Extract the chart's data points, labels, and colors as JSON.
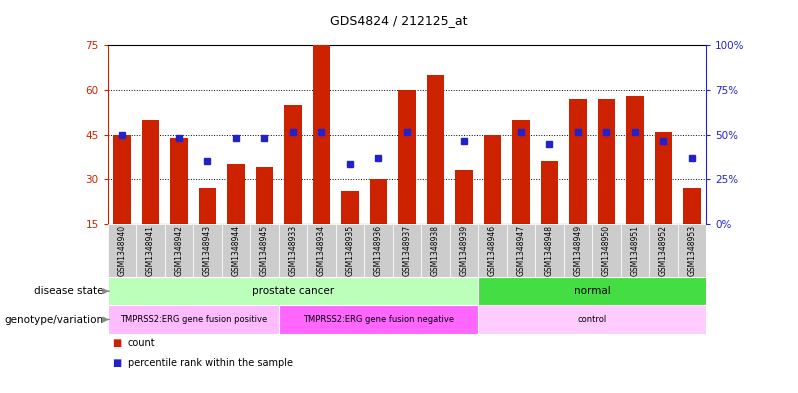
{
  "title": "GDS4824 / 212125_at",
  "samples": [
    "GSM1348940",
    "GSM1348941",
    "GSM1348942",
    "GSM1348943",
    "GSM1348944",
    "GSM1348945",
    "GSM1348933",
    "GSM1348934",
    "GSM1348935",
    "GSM1348936",
    "GSM1348937",
    "GSM1348938",
    "GSM1348939",
    "GSM1348946",
    "GSM1348947",
    "GSM1348948",
    "GSM1348949",
    "GSM1348950",
    "GSM1348951",
    "GSM1348952",
    "GSM1348953"
  ],
  "bar_values": [
    45,
    50,
    44,
    27,
    35,
    34,
    55,
    75,
    26,
    30,
    60,
    65,
    33,
    45,
    50,
    36,
    57,
    57,
    58,
    46,
    27
  ],
  "dot_values": [
    45,
    null,
    44,
    36,
    44,
    44,
    46,
    46,
    35,
    37,
    46,
    null,
    43,
    null,
    46,
    42,
    46,
    46,
    46,
    43,
    37
  ],
  "ylim_left": [
    15,
    75
  ],
  "yticks_left": [
    15,
    30,
    45,
    60,
    75
  ],
  "ylim_right": [
    0,
    100
  ],
  "yticks_right": [
    0,
    25,
    50,
    75,
    100
  ],
  "bar_color": "#cc2200",
  "dot_color": "#2222cc",
  "bar_bottom": 15,
  "disease_state_groups": [
    {
      "label": "prostate cancer",
      "start": 0,
      "end": 13,
      "color": "#bbffbb"
    },
    {
      "label": "normal",
      "start": 13,
      "end": 21,
      "color": "#44dd44"
    }
  ],
  "genotype_groups": [
    {
      "label": "TMPRSS2:ERG gene fusion positive",
      "start": 0,
      "end": 6,
      "color": "#ffbbff"
    },
    {
      "label": "TMPRSS2:ERG gene fusion negative",
      "start": 6,
      "end": 13,
      "color": "#ff66ff"
    },
    {
      "label": "control",
      "start": 13,
      "end": 21,
      "color": "#ffccff"
    }
  ],
  "bg_color": "#ffffff",
  "label_row1": "disease state",
  "label_row2": "genotype/variation",
  "tick_bg_color": "#cccccc",
  "right_axis_label": [
    "0%",
    "25%",
    "50%",
    "75%",
    "100%"
  ]
}
